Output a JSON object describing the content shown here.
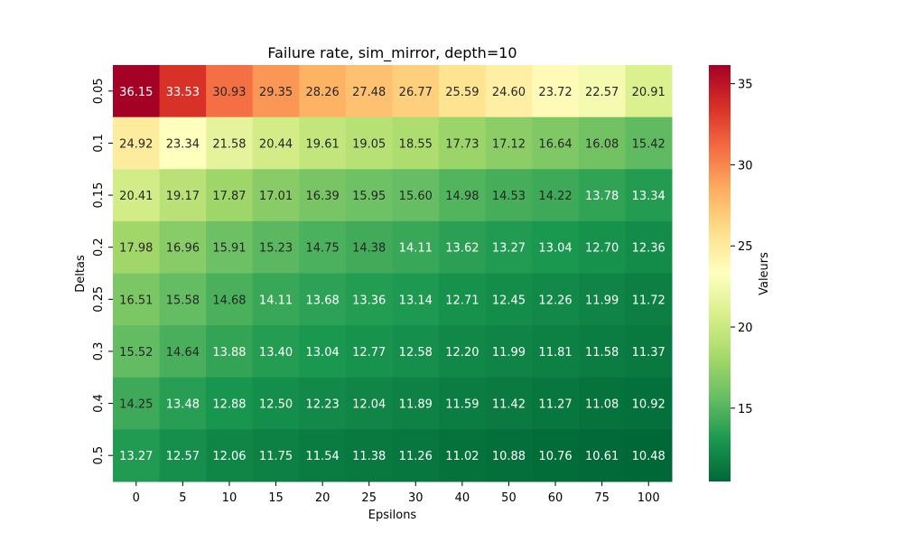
{
  "chart_data": {
    "type": "heatmap",
    "title": "Failure rate, sim_mirror, depth=10",
    "xlabel": "Epsilons",
    "ylabel": "Deltas",
    "x": [
      "0",
      "5",
      "10",
      "15",
      "20",
      "25",
      "30",
      "40",
      "50",
      "60",
      "75",
      "100"
    ],
    "y": [
      "0.05",
      "0.1",
      "0.15",
      "0.2",
      "0.25",
      "0.3",
      "0.4",
      "0.5"
    ],
    "values": [
      [
        36.15,
        33.53,
        30.93,
        29.35,
        28.26,
        27.48,
        26.77,
        25.59,
        24.6,
        23.72,
        22.57,
        20.91
      ],
      [
        24.92,
        23.34,
        21.58,
        20.44,
        19.61,
        19.05,
        18.55,
        17.73,
        17.12,
        16.64,
        16.08,
        15.42
      ],
      [
        20.41,
        19.17,
        17.87,
        17.01,
        16.39,
        15.95,
        15.6,
        14.98,
        14.53,
        14.22,
        13.78,
        13.34
      ],
      [
        17.98,
        16.96,
        15.91,
        15.23,
        14.75,
        14.38,
        14.11,
        13.62,
        13.27,
        13.04,
        12.7,
        12.36
      ],
      [
        16.51,
        15.58,
        14.68,
        14.11,
        13.68,
        13.36,
        13.14,
        12.71,
        12.45,
        12.26,
        11.99,
        11.72
      ],
      [
        15.52,
        14.64,
        13.88,
        13.4,
        13.04,
        12.77,
        12.58,
        12.2,
        11.99,
        11.81,
        11.58,
        11.37
      ],
      [
        14.25,
        13.48,
        12.88,
        12.5,
        12.23,
        12.04,
        11.89,
        11.59,
        11.42,
        11.27,
        11.08,
        10.92
      ],
      [
        13.27,
        12.57,
        12.06,
        11.75,
        11.54,
        11.38,
        11.26,
        11.02,
        10.88,
        10.76,
        10.61,
        10.48
      ]
    ],
    "colormap": "RdYlGn_r",
    "colorbar": {
      "label": "Valeurs",
      "ticks": [
        15,
        20,
        25,
        30,
        35
      ],
      "range": [
        10.48,
        36.15
      ]
    },
    "legend": "colorbar-right",
    "grid": false
  }
}
